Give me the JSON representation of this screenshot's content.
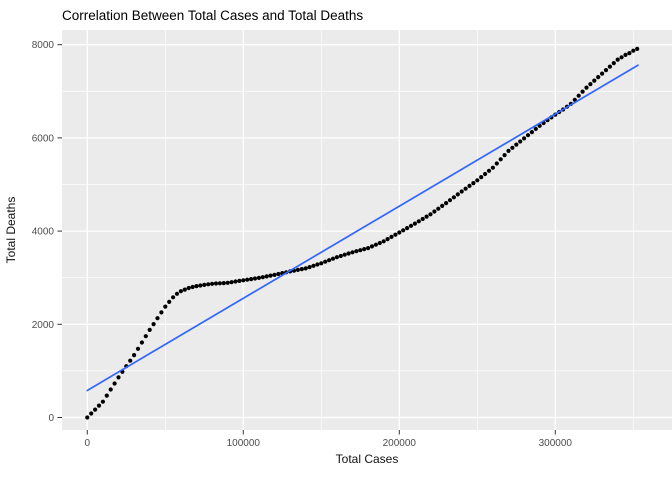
{
  "chart_data": {
    "type": "scatter",
    "title": "Correlation Between Total Cases and Total Deaths",
    "xlabel": "Total Cases",
    "ylabel": "Total Deaths",
    "xlim": [
      -16200,
      374800
    ],
    "ylim": [
      -268,
      8315
    ],
    "grid": "on",
    "legend": "none",
    "panel_bg": "#EBEBEB",
    "grid_color": "#FFFFFF",
    "point_color": "#000000",
    "tick_color": "#333333",
    "tick_text_color": "#4D4D4D",
    "x_ticks": {
      "values": [
        0,
        100000,
        200000,
        300000
      ],
      "labels": [
        "0",
        "100000",
        "200000",
        "300000"
      ]
    },
    "y_ticks": {
      "values": [
        0,
        2000,
        4000,
        6000,
        8000
      ],
      "labels": [
        "0",
        "2000",
        "4000",
        "6000",
        "8000"
      ]
    },
    "x_minor_ticks": [
      50000,
      150000,
      250000,
      350000
    ],
    "y_minor_ticks": [
      1000,
      3000,
      5000,
      7000
    ],
    "trend_line": {
      "name": "linear-fit",
      "color": "#3366FF",
      "x1": 0,
      "y1": 580,
      "x2": 353000,
      "y2": 7560
    },
    "points": [
      [
        0,
        0
      ],
      [
        2500,
        85
      ],
      [
        5000,
        170
      ],
      [
        7500,
        255
      ],
      [
        10000,
        340
      ],
      [
        12500,
        470
      ],
      [
        15000,
        600
      ],
      [
        17500,
        730
      ],
      [
        20000,
        860
      ],
      [
        22500,
        980
      ],
      [
        25000,
        1100
      ],
      [
        27500,
        1220
      ],
      [
        30000,
        1340
      ],
      [
        32500,
        1475
      ],
      [
        35000,
        1610
      ],
      [
        37500,
        1745
      ],
      [
        40000,
        1880
      ],
      [
        42500,
        2005
      ],
      [
        45000,
        2130
      ],
      [
        47500,
        2255
      ],
      [
        50000,
        2380
      ],
      [
        52500,
        2480
      ],
      [
        55000,
        2580
      ],
      [
        57500,
        2655
      ],
      [
        60000,
        2710
      ],
      [
        62500,
        2745
      ],
      [
        65000,
        2780
      ],
      [
        67500,
        2800
      ],
      [
        70000,
        2820
      ],
      [
        72500,
        2833
      ],
      [
        75000,
        2845
      ],
      [
        77500,
        2858
      ],
      [
        80000,
        2870
      ],
      [
        82500,
        2875
      ],
      [
        85000,
        2880
      ],
      [
        87500,
        2885
      ],
      [
        90000,
        2890
      ],
      [
        92500,
        2904
      ],
      [
        95000,
        2918
      ],
      [
        97500,
        2931
      ],
      [
        100000,
        2945
      ],
      [
        102500,
        2958
      ],
      [
        105000,
        2970
      ],
      [
        107500,
        2983
      ],
      [
        110000,
        2995
      ],
      [
        112500,
        3011
      ],
      [
        115000,
        3028
      ],
      [
        117500,
        3044
      ],
      [
        120000,
        3060
      ],
      [
        122500,
        3079
      ],
      [
        125000,
        3098
      ],
      [
        127500,
        3116
      ],
      [
        130000,
        3135
      ],
      [
        132500,
        3151
      ],
      [
        135000,
        3168
      ],
      [
        137500,
        3184
      ],
      [
        140000,
        3200
      ],
      [
        142500,
        3228
      ],
      [
        145000,
        3255
      ],
      [
        147500,
        3283
      ],
      [
        150000,
        3310
      ],
      [
        152500,
        3343
      ],
      [
        155000,
        3375
      ],
      [
        157500,
        3408
      ],
      [
        160000,
        3440
      ],
      [
        162500,
        3466
      ],
      [
        165000,
        3493
      ],
      [
        167500,
        3519
      ],
      [
        170000,
        3545
      ],
      [
        172500,
        3568
      ],
      [
        175000,
        3590
      ],
      [
        177500,
        3613
      ],
      [
        180000,
        3635
      ],
      [
        182500,
        3671
      ],
      [
        185000,
        3708
      ],
      [
        187500,
        3744
      ],
      [
        190000,
        3780
      ],
      [
        192500,
        3828
      ],
      [
        195000,
        3875
      ],
      [
        197500,
        3923
      ],
      [
        200000,
        3970
      ],
      [
        202500,
        4018
      ],
      [
        205000,
        4065
      ],
      [
        207500,
        4113
      ],
      [
        210000,
        4160
      ],
      [
        212500,
        4210
      ],
      [
        215000,
        4260
      ],
      [
        217500,
        4310
      ],
      [
        220000,
        4360
      ],
      [
        222500,
        4420
      ],
      [
        225000,
        4480
      ],
      [
        227500,
        4540
      ],
      [
        230000,
        4600
      ],
      [
        232500,
        4663
      ],
      [
        235000,
        4725
      ],
      [
        237500,
        4788
      ],
      [
        240000,
        4850
      ],
      [
        242500,
        4910
      ],
      [
        245000,
        4970
      ],
      [
        247500,
        5030
      ],
      [
        250000,
        5090
      ],
      [
        252500,
        5158
      ],
      [
        255000,
        5225
      ],
      [
        257500,
        5293
      ],
      [
        260000,
        5360
      ],
      [
        262500,
        5450
      ],
      [
        265000,
        5540
      ],
      [
        267500,
        5630
      ],
      [
        270000,
        5720
      ],
      [
        272500,
        5788
      ],
      [
        275000,
        5855
      ],
      [
        277500,
        5923
      ],
      [
        280000,
        5990
      ],
      [
        282500,
        6058
      ],
      [
        285000,
        6125
      ],
      [
        287500,
        6193
      ],
      [
        290000,
        6260
      ],
      [
        292500,
        6320
      ],
      [
        295000,
        6380
      ],
      [
        297500,
        6440
      ],
      [
        300000,
        6500
      ],
      [
        302500,
        6555
      ],
      [
        305000,
        6610
      ],
      [
        307500,
        6670
      ],
      [
        310000,
        6730
      ],
      [
        312500,
        6818
      ],
      [
        315000,
        6905
      ],
      [
        317500,
        6993
      ],
      [
        320000,
        7080
      ],
      [
        322500,
        7155
      ],
      [
        325000,
        7230
      ],
      [
        327500,
        7305
      ],
      [
        330000,
        7380
      ],
      [
        332500,
        7455
      ],
      [
        335000,
        7530
      ],
      [
        337500,
        7605
      ],
      [
        340000,
        7680
      ],
      [
        342500,
        7730
      ],
      [
        345000,
        7780
      ],
      [
        347500,
        7820
      ],
      [
        350000,
        7870
      ],
      [
        352500,
        7910
      ]
    ]
  }
}
